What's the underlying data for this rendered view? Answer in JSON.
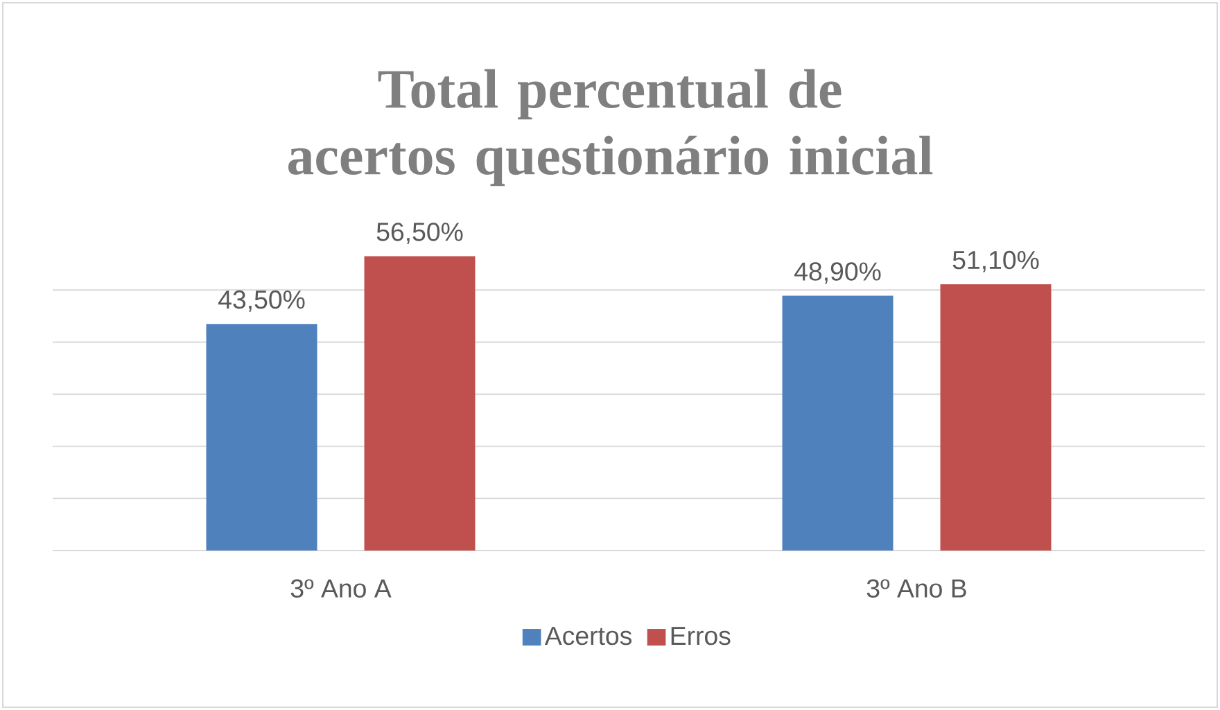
{
  "chart_data": {
    "type": "bar",
    "title": "Total percentual de acertos questionário inicial",
    "categories": [
      "3º Ano A",
      "3º Ano B"
    ],
    "series": [
      {
        "name": "Acertos",
        "color": "#4f81bd",
        "values": [
          43.5,
          48.9
        ],
        "value_labels": [
          "43,50%",
          "48,90%"
        ]
      },
      {
        "name": "Erros",
        "color": "#c0504d",
        "values": [
          56.5,
          51.1
        ],
        "value_labels": [
          "56,50%",
          "51,10%"
        ]
      }
    ],
    "grid": "y",
    "legend": "bottom",
    "tick_labels": "x"
  }
}
